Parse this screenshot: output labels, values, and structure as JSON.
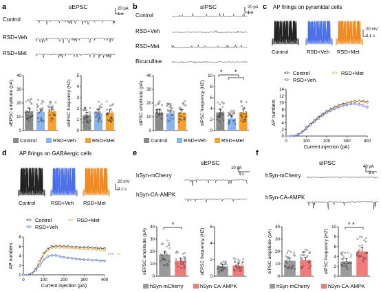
{
  "colors": {
    "control": "#8a8a8a",
    "veh": "#8ab4f0",
    "met": "#f5a030",
    "mcherry": "#9a9a9a",
    "ampk": "#f07b7b",
    "trace": "#222222"
  },
  "panels": {
    "a": {
      "letter": "a",
      "title": "sEPSC",
      "traces": [
        "Control",
        "RSD+Veh",
        "RSD+Met"
      ],
      "scale": [
        "20 pA",
        "1 s"
      ],
      "legend": [
        "Control",
        "RSD+Veh",
        "RSD+Met"
      ]
    },
    "b": {
      "letter": "b",
      "title": "sIPSC",
      "traces": [
        "Control",
        "RSD+Veh",
        "RSD+Met",
        "Bicuculline"
      ],
      "scale": [
        "20 pA",
        "1 s"
      ],
      "legend": [
        "Control",
        "RSD+Veh",
        "RSD+Met"
      ],
      "sig": [
        "*",
        "*"
      ]
    },
    "c": {
      "letter": "c",
      "title": "AP firings on pyramidal cells",
      "groups": [
        "Control",
        "RSD+Veh",
        "RSD+Met"
      ],
      "scale": [
        "20 mV",
        "0.1 s"
      ],
      "legend": [
        "Control",
        "RSD+Met",
        "RSD+Veh"
      ]
    },
    "d": {
      "letter": "d",
      "title": "AP firings on GABAergic cells",
      "groups": [
        "Control",
        "RSD+Veh",
        "RSD+Met"
      ],
      "scale": [
        "20 mV",
        "0.1 s"
      ],
      "legend": [
        "Control",
        "RSD+Met",
        "RSD+Veh"
      ],
      "sig": [
        "***",
        "**"
      ]
    },
    "e": {
      "letter": "e",
      "title": "sEPSC",
      "traces": [
        "hSyn-mCherry",
        "hSyn-CA-AMPK"
      ],
      "scale": [
        "10 pA",
        "3 s"
      ],
      "legend": [
        "hSyn-mCherry",
        "hSyn-CA-AMPK"
      ],
      "sig": "*"
    },
    "f": {
      "letter": "f",
      "title": "sIPSC",
      "traces": [
        "hSyn-mCherry",
        "hSyn-CA-AMPK"
      ],
      "scale": [
        "40 pA",
        "3 s"
      ],
      "legend": [
        "hSyn-mCherry",
        "hSyn-CA-AMPK"
      ],
      "sig": "* *"
    }
  },
  "chart_data": [
    {
      "panel": "a",
      "type": "bar",
      "ylabel": "sEPSC amplitude (pA)",
      "ylim": [
        0,
        40
      ],
      "yticks": [
        "0",
        "10",
        "20",
        "30",
        "40"
      ],
      "categories": [
        "Control",
        "RSD+Veh",
        "RSD+Met"
      ],
      "values": [
        14,
        13.5,
        14
      ]
    },
    {
      "panel": "a",
      "type": "bar",
      "ylabel": "sEPSC frequency (HZ)",
      "ylim": [
        0,
        5
      ],
      "yticks": [
        "0",
        "1",
        "2",
        "3",
        "4",
        "5"
      ],
      "categories": [
        "Control",
        "RSD+Veh",
        "RSD+Met"
      ],
      "values": [
        1.4,
        1.6,
        1.6
      ]
    },
    {
      "panel": "b",
      "type": "bar",
      "ylabel": "sIPSC amplitude (pA)",
      "ylim": [
        0,
        40
      ],
      "yticks": [
        "0",
        "10",
        "20",
        "30",
        "40"
      ],
      "categories": [
        "Control",
        "RSD+Veh",
        "RSD+Met"
      ],
      "values": [
        13,
        12.5,
        13
      ]
    },
    {
      "panel": "b",
      "type": "bar",
      "ylabel": "sIPSC frequency (HZ)",
      "ylim": [
        0,
        10
      ],
      "yticks": [
        "0",
        "2",
        "4",
        "6",
        "8",
        "10"
      ],
      "categories": [
        "Control",
        "RSD+Veh",
        "RSD+Met"
      ],
      "values": [
        3.3,
        2.2,
        3.3
      ]
    },
    {
      "panel": "c",
      "type": "line",
      "ylabel": "AP numbers",
      "xlabel": "Current injection (pA)",
      "xlim": [
        0,
        400
      ],
      "ylim": [
        0,
        14
      ],
      "xticks": [
        "0",
        "100",
        "200",
        "300",
        "400"
      ],
      "yticks": [
        "0",
        "2",
        "4",
        "6",
        "8",
        "10",
        "12",
        "14"
      ],
      "x": [
        0,
        20,
        40,
        60,
        80,
        100,
        120,
        140,
        160,
        180,
        200,
        220,
        240,
        260,
        280,
        300,
        320,
        340,
        360,
        380,
        400
      ],
      "series": [
        {
          "name": "Control",
          "values": [
            0,
            0,
            0.1,
            0.5,
            1.3,
            2.5,
            3.6,
            4.7,
            5.7,
            6.6,
            7.4,
            8.1,
            8.7,
            9.2,
            9.6,
            9.9,
            10.2,
            10.4,
            10.5,
            10.4,
            10.2
          ]
        },
        {
          "name": "RSD+Met",
          "values": [
            0,
            0,
            0.1,
            0.4,
            1.2,
            2.3,
            3.4,
            4.5,
            5.5,
            6.4,
            7.2,
            7.9,
            8.5,
            9.0,
            9.4,
            9.8,
            10.1,
            10.3,
            10.4,
            10.2,
            10.0
          ]
        },
        {
          "name": "RSD+Veh",
          "values": [
            0,
            0,
            0.1,
            0.4,
            1.1,
            2.2,
            3.3,
            4.3,
            5.3,
            6.2,
            7.0,
            7.6,
            8.2,
            8.7,
            9.1,
            9.4,
            9.6,
            9.7,
            9.5,
            9.1,
            8.7
          ]
        }
      ]
    },
    {
      "panel": "d",
      "type": "line",
      "ylabel": "AP numbers",
      "xlabel": "Current injection (pA)",
      "xlim": [
        0,
        400
      ],
      "ylim": [
        0,
        8
      ],
      "xticks": [
        "0",
        "100",
        "200",
        "300",
        "400"
      ],
      "yticks": [
        "0",
        "2",
        "4",
        "6",
        "8"
      ],
      "x": [
        0,
        20,
        40,
        60,
        80,
        100,
        120,
        140,
        160,
        180,
        200,
        220,
        240,
        260,
        280,
        300,
        320,
        340,
        360,
        380,
        400
      ],
      "series": [
        {
          "name": "Control",
          "values": [
            0,
            0,
            0.3,
            1.2,
            2.8,
            4.5,
            5.5,
            6.0,
            6.1,
            6.1,
            6.0,
            6.0,
            5.9,
            5.9,
            5.8,
            5.8,
            5.8,
            5.7,
            5.7,
            5.6,
            5.6
          ]
        },
        {
          "name": "RSD+Met",
          "values": [
            0,
            0,
            0.3,
            1.1,
            2.6,
            4.2,
            5.2,
            5.7,
            5.8,
            5.8,
            5.7,
            5.7,
            5.6,
            5.6,
            5.5,
            5.5,
            5.4,
            5.4,
            5.3,
            5.3,
            5.2
          ]
        },
        {
          "name": "RSD+Veh",
          "values": [
            0,
            0,
            0.2,
            0.9,
            2.0,
            3.2,
            3.9,
            4.1,
            4.1,
            3.9,
            3.7,
            3.6,
            3.5,
            3.4,
            3.3,
            3.2,
            3.2,
            3.1,
            3.1,
            3.0,
            3.0
          ]
        }
      ]
    },
    {
      "panel": "e",
      "type": "bar",
      "ylabel": "sEPSC amplitude (pA)",
      "ylim": [
        0,
        40
      ],
      "yticks": [
        "0",
        "10",
        "20",
        "30",
        "40"
      ],
      "categories": [
        "hSyn-mCherry",
        "hSyn-CA-AMPK"
      ],
      "values": [
        17.5,
        12.5
      ]
    },
    {
      "panel": "e",
      "type": "bar",
      "ylabel": "sEPSC frequency (HZ)",
      "ylim": [
        0,
        6
      ],
      "yticks": [
        "0",
        "2",
        "4",
        "6"
      ],
      "categories": [
        "hSyn-mCherry",
        "hSyn-CA-AMPK"
      ],
      "values": [
        1.2,
        1.3
      ]
    },
    {
      "panel": "f",
      "type": "bar",
      "ylabel": "sIPSC amplitude (pA)",
      "ylim": [
        0,
        40
      ],
      "yticks": [
        "0",
        "10",
        "20",
        "30",
        "40"
      ],
      "categories": [
        "hSyn-mCherry",
        "hSyn-CA-AMPK"
      ],
      "values": [
        12.5,
        13
      ]
    },
    {
      "panel": "f",
      "type": "bar",
      "ylabel": "sIPSC frequency (HZ)",
      "ylim": [
        0,
        10
      ],
      "yticks": [
        "0",
        "2",
        "4",
        "6",
        "8",
        "10"
      ],
      "categories": [
        "hSyn-mCherry",
        "hSyn-CA-AMPK"
      ],
      "values": [
        3.0,
        5.0
      ]
    }
  ]
}
